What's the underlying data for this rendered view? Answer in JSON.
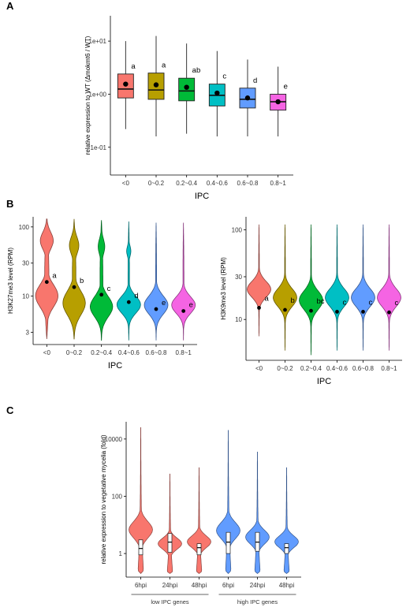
{
  "panel_labels": [
    "A",
    "B",
    "C"
  ],
  "chart_data": [
    {
      "type": "box",
      "panel": "A",
      "ylabel": "relative expression to WT (Δmokmt6 / WT)",
      "xlabel": "IPC",
      "yscale": "log",
      "ylim": [
        0.03,
        30
      ],
      "yticks": [
        0.1,
        1,
        10
      ],
      "ytick_labels": [
        "1e-01",
        "1e+00",
        "1e+01"
      ],
      "categories": [
        "<0",
        "0~0.2",
        "0.2~0.4",
        "0.4~0.6",
        "0.6~0.8",
        "0.8~1"
      ],
      "colors": [
        "#F8766D",
        "#B79F00",
        "#00BA38",
        "#00BFC4",
        "#619CFF",
        "#F564E3"
      ],
      "boxes": [
        {
          "whislo": 0.22,
          "q1": 0.85,
          "med": 1.25,
          "q3": 2.4,
          "whishi": 10.0,
          "mean": 1.55,
          "letter": "a"
        },
        {
          "whislo": 0.16,
          "q1": 0.8,
          "med": 1.2,
          "q3": 2.5,
          "whishi": 12.5,
          "mean": 1.5,
          "letter": "a"
        },
        {
          "whislo": 0.18,
          "q1": 0.75,
          "med": 1.15,
          "q3": 2.0,
          "whishi": 9.0,
          "mean": 1.35,
          "letter": "ab"
        },
        {
          "whislo": 0.16,
          "q1": 0.6,
          "med": 0.95,
          "q3": 1.55,
          "whishi": 6.5,
          "mean": 1.05,
          "letter": "c"
        },
        {
          "whislo": 0.16,
          "q1": 0.55,
          "med": 0.8,
          "q3": 1.3,
          "whishi": 4.5,
          "mean": 0.85,
          "letter": "d"
        },
        {
          "whislo": 0.16,
          "q1": 0.5,
          "med": 0.72,
          "q3": 1.0,
          "whishi": 3.3,
          "mean": 0.72,
          "letter": "e"
        }
      ]
    },
    {
      "type": "violin",
      "panel": "B-left",
      "ylabel": "H3K27me3 level (RPM)",
      "xlabel": "IPC",
      "yscale": "log",
      "ylim": [
        2.0,
        140
      ],
      "yticks": [
        3,
        10,
        30,
        100
      ],
      "ytick_labels": [
        "3",
        "10",
        "30",
        "100"
      ],
      "categories": [
        "<0",
        "0~0.2",
        "0.2~0.4",
        "0.4~0.6",
        "0.6~0.8",
        "0.8~1"
      ],
      "colors": [
        "#F8766D",
        "#B79F00",
        "#00BA38",
        "#00BFC4",
        "#619CFF",
        "#F564E3"
      ],
      "violins": [
        {
          "min": 2.4,
          "max": 130,
          "mean": 16.0,
          "letter": "a"
        },
        {
          "min": 2.4,
          "max": 130,
          "mean": 13.5,
          "letter": "b"
        },
        {
          "min": 2.3,
          "max": 125,
          "mean": 10.5,
          "letter": "c"
        },
        {
          "min": 2.3,
          "max": 120,
          "mean": 8.2,
          "letter": "d"
        },
        {
          "min": 2.3,
          "max": 115,
          "mean": 6.5,
          "letter": "e"
        },
        {
          "min": 2.3,
          "max": 115,
          "mean": 6.1,
          "letter": "e"
        }
      ]
    },
    {
      "type": "violin",
      "panel": "B-right",
      "ylabel": "H3K9me3 level (RPM)",
      "xlabel": "IPC",
      "yscale": "log",
      "ylim": [
        3.5,
        140
      ],
      "yticks": [
        10,
        30,
        100
      ],
      "ytick_labels": [
        "10",
        "30",
        "100"
      ],
      "categories": [
        "<0",
        "0~0.2",
        "0.2~0.4",
        "0.4~0.6",
        "0.6~0.8",
        "0.8~1"
      ],
      "colors": [
        "#F8766D",
        "#B79F00",
        "#00BA38",
        "#00BFC4",
        "#619CFF",
        "#F564E3"
      ],
      "violins": [
        {
          "min": 6.5,
          "max": 115,
          "mean": 13.5,
          "letter": "a"
        },
        {
          "min": 4.5,
          "max": 115,
          "mean": 12.8,
          "letter": "b"
        },
        {
          "min": 4.0,
          "max": 115,
          "mean": 12.5,
          "letter": "bc"
        },
        {
          "min": 4.5,
          "max": 115,
          "mean": 12.2,
          "letter": "c"
        },
        {
          "min": 4.5,
          "max": 115,
          "mean": 12.2,
          "letter": "c"
        },
        {
          "min": 4.5,
          "max": 115,
          "mean": 12.0,
          "letter": "c"
        }
      ]
    },
    {
      "type": "violin",
      "panel": "C",
      "ylabel": "relative expression to vegetative mycelia (fold)",
      "yscale": "log",
      "ylim": [
        0.15,
        40000
      ],
      "yticks": [
        1,
        100,
        10000
      ],
      "ytick_labels": [
        "1",
        "100",
        "10000"
      ],
      "categories": [
        "6hpi",
        "24hpi",
        "48hpi",
        "6hpi",
        "24hpi",
        "48hpi"
      ],
      "groups": [
        {
          "label": "low IPC genes",
          "members": [
            0,
            1,
            2
          ]
        },
        {
          "label": "high IPC genes",
          "members": [
            3,
            4,
            5
          ]
        }
      ],
      "colors": [
        "#F8766D",
        "#F8766D",
        "#F8766D",
        "#619CFF",
        "#619CFF",
        "#619CFF"
      ],
      "violins": [
        {
          "min": 0.2,
          "max": 25000,
          "q1": 0.9,
          "med": 1.5,
          "q3": 3.0
        },
        {
          "min": 0.2,
          "max": 600,
          "q1": 1.1,
          "med": 2.5,
          "q3": 5.0
        },
        {
          "min": 0.2,
          "max": 1000,
          "q1": 0.9,
          "med": 1.6,
          "q3": 2.2
        },
        {
          "min": 0.2,
          "max": 20000,
          "q1": 1.0,
          "med": 2.5,
          "q3": 5.5
        },
        {
          "min": 0.2,
          "max": 3500,
          "q1": 1.2,
          "med": 2.5,
          "q3": 5.5
        },
        {
          "min": 0.2,
          "max": 1000,
          "q1": 1.0,
          "med": 1.6,
          "q3": 2.2
        }
      ]
    }
  ]
}
